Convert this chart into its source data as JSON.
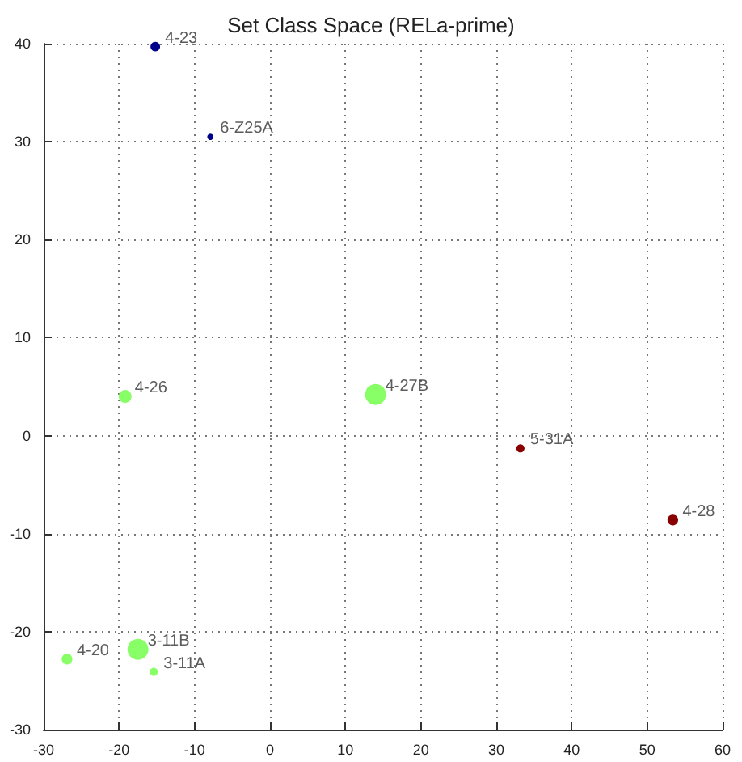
{
  "chart_data": {
    "type": "bubble",
    "title": "Set Class Space (RELa-prime)",
    "series": [
      {
        "color": "#00008b",
        "x": [
          -15.2,
          -7.9
        ],
        "values": [
          39.7,
          30.5
        ],
        "sizes": [
          0.21,
          0.09
        ]
      },
      {
        "color": "#88ff66",
        "x": [
          -19.2,
          14.0,
          -26.9,
          -17.5,
          -15.4
        ],
        "values": [
          4.0,
          4.2,
          -22.8,
          -21.8,
          -24.1
        ],
        "sizes": [
          0.38,
          1,
          0.26,
          1,
          0.15
        ]
      },
      {
        "color": "#880000",
        "x": [
          33.2,
          53.4
        ],
        "values": [
          -1.3,
          -8.6
        ],
        "sizes": [
          0.15,
          0.26
        ]
      }
    ],
    "annotations": [
      {
        "text": "4-23",
        "x": -15.2,
        "y": 39.7
      },
      {
        "text": "6-Z25A",
        "x": -7.9,
        "y": 30.5
      },
      {
        "text": "4-26",
        "x": -19.2,
        "y": 4.0
      },
      {
        "text": "4-27B",
        "x": 14.0,
        "y": 4.2
      },
      {
        "text": "4-20",
        "x": -26.9,
        "y": -22.8
      },
      {
        "text": "3-11B",
        "x": -17.5,
        "y": -21.8
      },
      {
        "text": "3-11A",
        "x": -15.4,
        "y": -24.1
      },
      {
        "text": "5-31A",
        "x": 33.2,
        "y": -1.3
      },
      {
        "text": "4-28",
        "x": 53.4,
        "y": -8.6
      }
    ],
    "xlim": [
      -30,
      60
    ],
    "xticks": [
      -30,
      -20,
      -10,
      0,
      10,
      20,
      30,
      40,
      50,
      60
    ],
    "ylim": [
      -30,
      40
    ],
    "yticks": [
      -30,
      -20,
      -10,
      0,
      10,
      20,
      30,
      40
    ],
    "grid": true
  }
}
